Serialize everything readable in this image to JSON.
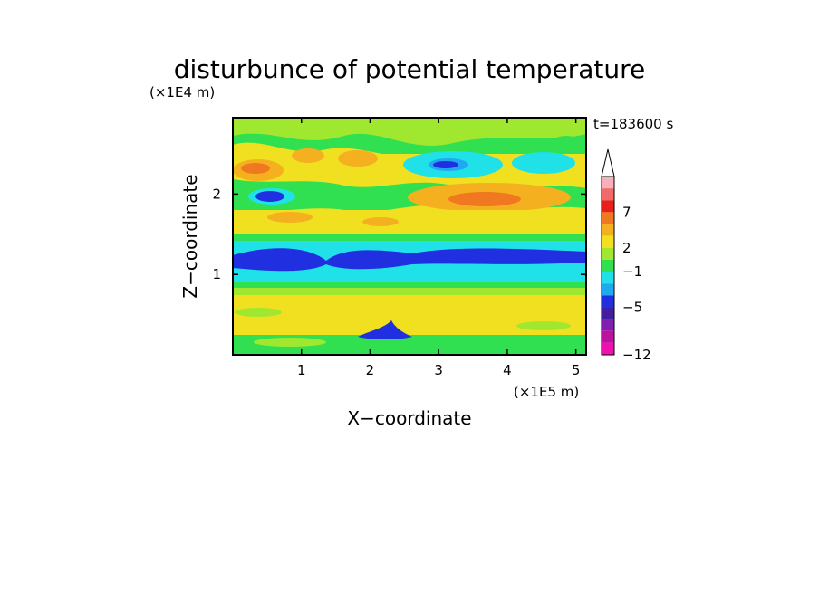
{
  "chart_data": {
    "type": "heatmap",
    "title": "disturbunce of potential temperature",
    "xlabel": "X−coordinate",
    "ylabel": "Z−coordinate",
    "x_unit": "(×1E5 m)",
    "y_unit": "(×1E4 m)",
    "time_label": "t=183600 s",
    "xlim": [
      0,
      5.15
    ],
    "ylim": [
      0,
      2.95
    ],
    "x_ticks": [
      "1",
      "2",
      "3",
      "4",
      "5"
    ],
    "y_ticks": [
      "1",
      "2"
    ],
    "colorbar": {
      "labels": [
        "7",
        "2",
        "−1",
        "−5",
        "−12"
      ],
      "levels": [
        {
          "color": "#f7b0b8"
        },
        {
          "color": "#f06a6a"
        },
        {
          "color": "#e8201c"
        },
        {
          "color": "#f07820"
        },
        {
          "color": "#f5b020"
        },
        {
          "color": "#f0e020"
        },
        {
          "color": "#a0e830"
        },
        {
          "color": "#30e050"
        },
        {
          "color": "#20e0e8"
        },
        {
          "color": "#20a8f0"
        },
        {
          "color": "#2030e0"
        },
        {
          "color": "#4020a0"
        },
        {
          "color": "#8020b0"
        },
        {
          "color": "#c010a0"
        },
        {
          "color": "#f010b0"
        }
      ],
      "extend_top": true
    },
    "field_bands": [
      {
        "z_range": [
          0.0,
          0.2
        ],
        "value": 0.5
      },
      {
        "z_range": [
          0.2,
          0.6
        ],
        "value": 1.0
      },
      {
        "z_range": [
          0.6,
          0.85
        ],
        "value": 0.5
      },
      {
        "z_range": [
          0.85,
          1.0
        ],
        "value": 0.0
      },
      {
        "z_range": [
          1.0,
          1.3
        ],
        "value": -2.0
      },
      {
        "z_range": [
          1.3,
          1.45
        ],
        "value": -1.0
      },
      {
        "z_range": [
          1.45,
          1.7
        ],
        "value": 0.0
      },
      {
        "z_range": [
          1.7,
          2.1
        ],
        "value": 1.0
      },
      {
        "z_range": [
          2.1,
          2.5
        ],
        "value": 0.5
      },
      {
        "z_range": [
          2.5,
          2.95
        ],
        "value": 0.8
      }
    ]
  }
}
